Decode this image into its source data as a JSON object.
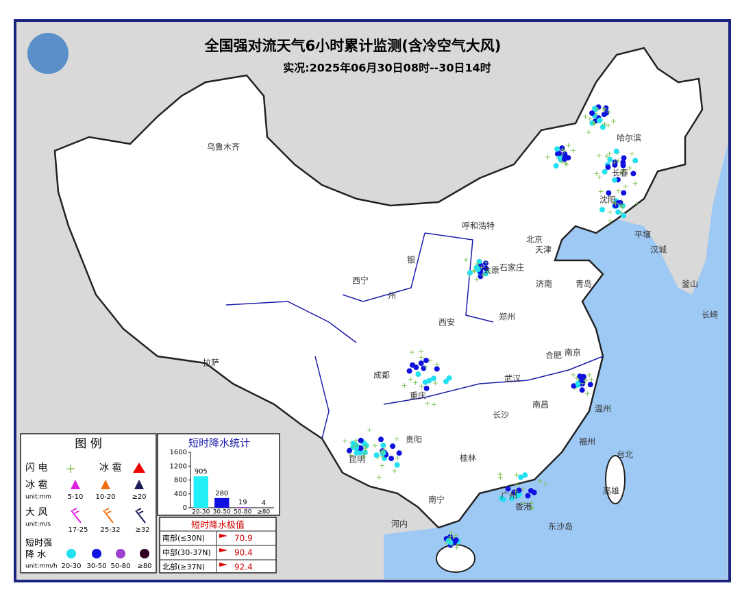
{
  "header": {
    "title": "全国强对流天气6小时累计监测(含冷空气大风)",
    "subtitle": "实况:2025年06月30日08时--30日14时"
  },
  "map": {
    "labels": [
      "乌鲁木齐",
      "西宁",
      "拉萨",
      "成都",
      "西安",
      "呼和浩特",
      "银",
      "州",
      "太原",
      "石家庄",
      "北京",
      "天津",
      "济南",
      "青岛",
      "郑州",
      "合肥",
      "南京",
      "武汉",
      "长沙",
      "南昌",
      "贵阳",
      "昆明",
      "南宁",
      "桂林",
      "福州",
      "温州",
      "广州",
      "香港",
      "台北",
      "高雄",
      "哈尔滨",
      "长春",
      "沈阳",
      "平壤",
      "汉城",
      "釜山",
      "长崎",
      "河内",
      "东沙岛",
      "重庆"
    ]
  },
  "legend": {
    "title": "图 例",
    "lightning": "闪 电",
    "hail_top": "冰 雹",
    "hail": "冰 雹",
    "hail_unit": "unit:mm",
    "hail_ranges": [
      "5-10",
      "10-20",
      "≥20"
    ],
    "wind": "大 风",
    "wind_unit": "unit:m/s",
    "wind_ranges": [
      "17-25",
      "25-32",
      "≥32"
    ],
    "rain": "短时强",
    "rain2": "降 水",
    "rain_unit": "unit:mm/h",
    "rain_ranges": [
      "20-30",
      "30-50",
      "50-80",
      "≥80"
    ]
  },
  "stats": {
    "title": "短时降水统计",
    "categories": [
      "20-30",
      "30-50",
      "50-80",
      "≥80"
    ],
    "values": [
      905,
      280,
      19,
      4
    ],
    "ylim": [
      0,
      1600
    ],
    "yticks": [
      0,
      400,
      800,
      1200,
      1600
    ]
  },
  "extremes": {
    "title": "短时降水极值",
    "rows": [
      [
        "南部(≤30N)",
        70.9
      ],
      [
        "中部(30-37N)",
        90.4
      ],
      [
        "北部(≥37N)",
        92.4
      ]
    ]
  }
}
